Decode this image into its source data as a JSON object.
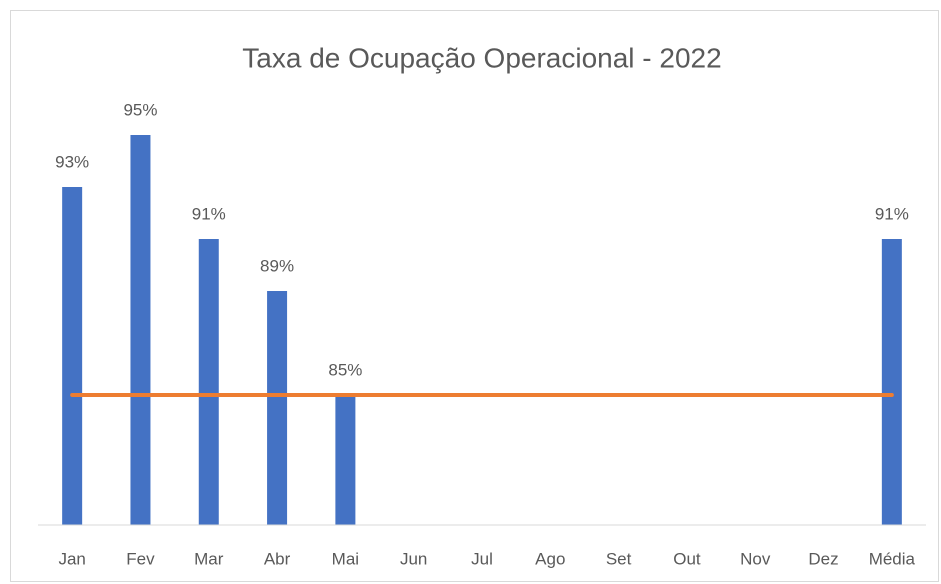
{
  "chart_data": {
    "type": "bar",
    "title": "Taxa de Ocupação Operacional - 2022",
    "categories": [
      "Jan",
      "Fev",
      "Mar",
      "Abr",
      "Mai",
      "Jun",
      "Jul",
      "Ago",
      "Set",
      "Out",
      "Nov",
      "Dez",
      "Média"
    ],
    "series": [
      {
        "type": "bar",
        "color": "#4472c4",
        "values": [
          93,
          95,
          91,
          89,
          85,
          null,
          null,
          null,
          null,
          null,
          null,
          null,
          91
        ],
        "value_labels": [
          "93%",
          "95%",
          "91%",
          "89%",
          "85%",
          null,
          null,
          null,
          null,
          null,
          null,
          null,
          "91%"
        ]
      },
      {
        "type": "line",
        "color": "#ed7d31",
        "values": [
          85,
          85,
          85,
          85,
          85,
          85,
          85,
          85,
          85,
          85,
          85,
          85,
          85
        ]
      }
    ],
    "ylim": [
      80,
      100
    ]
  }
}
